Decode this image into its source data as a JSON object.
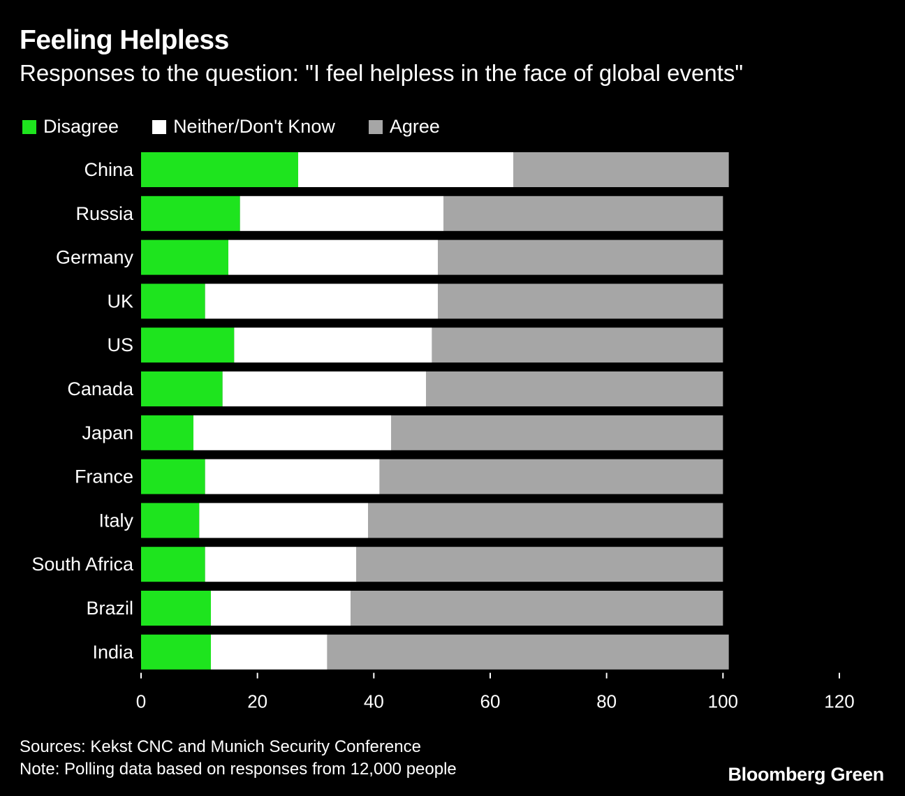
{
  "title": "Feeling Helpless",
  "subtitle": "Responses to the question: \"I feel helpless in the face of global events\"",
  "legend": [
    {
      "label": "Disagree",
      "color": "#1ee41e"
    },
    {
      "label": "Neither/Don't Know",
      "color": "#ffffff"
    },
    {
      "label": "Agree",
      "color": "#a6a6a6"
    }
  ],
  "chart_data": {
    "type": "bar",
    "orientation": "horizontal",
    "stacked": true,
    "categories": [
      "China",
      "Russia",
      "Germany",
      "UK",
      "US",
      "Canada",
      "Japan",
      "France",
      "Italy",
      "South Africa",
      "Brazil",
      "India"
    ],
    "series": [
      {
        "name": "Disagree",
        "color": "#1ee41e",
        "values": [
          27,
          17,
          15,
          11,
          16,
          14,
          9,
          11,
          10,
          11,
          12,
          12
        ]
      },
      {
        "name": "Neither/Don't Know",
        "color": "#ffffff",
        "values": [
          37,
          35,
          36,
          40,
          34,
          35,
          34,
          30,
          29,
          26,
          24,
          20
        ]
      },
      {
        "name": "Agree",
        "color": "#a6a6a6",
        "values": [
          37,
          48,
          49,
          49,
          50,
          51,
          57,
          59,
          61,
          63,
          64,
          69
        ]
      }
    ],
    "xlim": [
      0,
      120
    ],
    "xticks": [
      "0",
      "20",
      "40",
      "60",
      "80",
      "100",
      "120"
    ],
    "grid": false,
    "legend_position": "top-left"
  },
  "footer": {
    "sources": "Sources: Kekst CNC and Munich Security Conference",
    "note": "Note: Polling data based on responses from 12,000 people"
  },
  "brand": "Bloomberg Green"
}
